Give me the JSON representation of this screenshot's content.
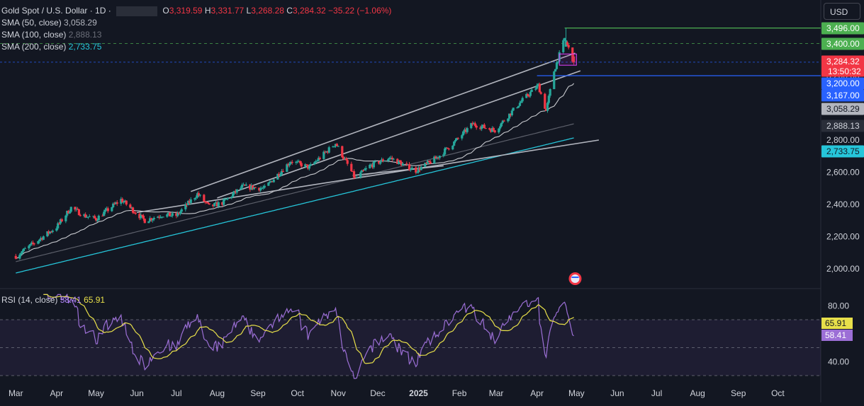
{
  "header": {
    "symbol": "Gold Spot / U.S. Dollar · 1D ·",
    "open_label": "O",
    "open": "3,319.59",
    "high_label": "H",
    "high": "3,331.77",
    "low_label": "L",
    "low": "3,268.28",
    "close_label": "C",
    "close": "3,284.32",
    "change": "−35.22 (−1.06%)"
  },
  "currency": "USD",
  "indicators": [
    {
      "label": "SMA (50, close)",
      "value": "3,058.29",
      "color": "#d1d4dc"
    },
    {
      "label": "SMA (100, close)",
      "value": "2,888.13",
      "color": "#787b86"
    },
    {
      "label": "SMA (200, close)",
      "value": "2,733.75",
      "color": "#26c6da"
    }
  ],
  "rsi_legend": {
    "label": "RSI (14, close)",
    "rsi": "58.41",
    "ma": "65.91"
  },
  "colors": {
    "up": "#26a69a",
    "down": "#f23645",
    "sma50": "#c7c9ce",
    "sma100": "#5d606b",
    "sma200": "#26c6da",
    "channel": "#b2b5be",
    "rsi": "#9c6fd6",
    "rsi_ma": "#e8e04a",
    "green_line": "#4caf50",
    "blue_line": "#2962ff"
  },
  "price_axis": [
    "3,400.00",
    "3,200.00",
    "2,800.00",
    "2,600.00",
    "2,400.00",
    "2,200.00",
    "2,000.00"
  ],
  "price_tags": [
    {
      "text": "3,496.00",
      "price": 3496,
      "bg": "#4caf50",
      "fg": "#ffffff"
    },
    {
      "text": "3,400.00",
      "price": 3400,
      "bg": "#4caf50",
      "fg": "#ffffff"
    },
    {
      "text": "3,284.32",
      "sub": "13:50:32",
      "price": 3284.32,
      "bg": "#f23645",
      "fg": "#ffffff"
    },
    {
      "text": "3,200.00",
      "price": 3200,
      "bg": "#2962ff",
      "fg": "#ffffff"
    },
    {
      "text": "3,167.00",
      "price": 3167,
      "bg": "#2962ff",
      "fg": "#ffffff"
    },
    {
      "text": "3,058.29",
      "price": 3058.29,
      "bg": "#b2b5be",
      "fg": "#131722"
    },
    {
      "text": "2,888.13",
      "price": 2888.13,
      "bg": "#2a2e39",
      "fg": "#d1d4dc"
    },
    {
      "text": "2,733.75",
      "price": 2733.75,
      "bg": "#26c6da",
      "fg": "#131722"
    }
  ],
  "rsi_axis": [
    "80.00",
    "40.00"
  ],
  "rsi_tags": [
    {
      "text": "65.91",
      "value": 65.91,
      "bg": "#e8e04a",
      "fg": "#131722"
    },
    {
      "text": "58.41",
      "value": 58.41,
      "bg": "#9c6fd6",
      "fg": "#ffffff"
    }
  ],
  "time_axis": [
    "Mar",
    "Apr",
    "May",
    "Jun",
    "Jul",
    "Aug",
    "Sep",
    "Oct",
    "Nov",
    "Dec",
    "2025",
    "Feb",
    "Mar",
    "Apr",
    "May",
    "Jun",
    "Jul",
    "Aug",
    "Sep",
    "Oct"
  ],
  "chart_data": {
    "type": "candlestick",
    "x_unit": "daily",
    "period": "2024-03 to 2025-04",
    "key_levels": [
      3496,
      3400,
      3200
    ],
    "current_price": 3284.32,
    "ylim": [
      1900,
      3570
    ],
    "rsi": {
      "period": 14,
      "value": 58.41,
      "ma": 65.91,
      "bands": [
        70,
        50,
        30
      ],
      "ylim": [
        25,
        90
      ]
    },
    "close_path": [
      [
        "2024-03-01",
        2080
      ],
      [
        "2024-03-15",
        2160
      ],
      [
        "2024-04-01",
        2260
      ],
      [
        "2024-04-12",
        2380
      ],
      [
        "2024-04-22",
        2330
      ],
      [
        "2024-05-01",
        2310
      ],
      [
        "2024-05-20",
        2430
      ],
      [
        "2024-06-07",
        2300
      ],
      [
        "2024-06-20",
        2335
      ],
      [
        "2024-07-01",
        2330
      ],
      [
        "2024-07-17",
        2465
      ],
      [
        "2024-07-26",
        2385
      ],
      [
        "2024-08-05",
        2410
      ],
      [
        "2024-08-20",
        2510
      ],
      [
        "2024-09-06",
        2500
      ],
      [
        "2024-09-26",
        2670
      ],
      [
        "2024-10-10",
        2630
      ],
      [
        "2024-10-30",
        2780
      ],
      [
        "2024-11-14",
        2560
      ],
      [
        "2024-11-25",
        2640
      ],
      [
        "2024-12-10",
        2690
      ],
      [
        "2024-12-30",
        2610
      ],
      [
        "2025-01-15",
        2690
      ],
      [
        "2025-01-30",
        2800
      ],
      [
        "2025-02-11",
        2900
      ],
      [
        "2025-02-28",
        2860
      ],
      [
        "2025-03-20",
        3040
      ],
      [
        "2025-04-02",
        3140
      ],
      [
        "2025-04-08",
        2980
      ],
      [
        "2025-04-14",
        3230
      ],
      [
        "2025-04-22",
        3430
      ],
      [
        "2025-04-29",
        3284.32
      ]
    ],
    "sma50": {
      "value": 3058.29
    },
    "sma100": {
      "value": 2888.13
    },
    "sma200": {
      "value": 2733.75
    }
  }
}
